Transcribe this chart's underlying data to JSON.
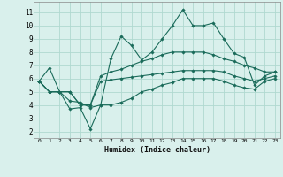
{
  "xlabel": "Humidex (Indice chaleur)",
  "background_color": "#d9f0ec",
  "grid_color": "#b0d9d0",
  "line_color": "#1a6b5a",
  "x_ticks": [
    0,
    1,
    2,
    3,
    4,
    5,
    6,
    7,
    8,
    9,
    10,
    11,
    12,
    13,
    14,
    15,
    16,
    17,
    18,
    19,
    20,
    21,
    22,
    23
  ],
  "y_ticks": [
    2,
    3,
    4,
    5,
    6,
    7,
    8,
    9,
    10,
    11
  ],
  "ylim": [
    1.5,
    11.8
  ],
  "xlim": [
    -0.5,
    23.5
  ],
  "lines": [
    {
      "x": [
        0,
        1,
        2,
        3,
        4,
        5,
        6,
        7,
        8,
        9,
        10,
        11,
        12,
        13,
        14,
        15,
        16,
        17,
        18,
        19,
        20,
        21,
        22,
        23
      ],
      "y": [
        5.8,
        6.8,
        5.0,
        3.7,
        3.8,
        2.2,
        4.0,
        7.5,
        9.2,
        8.5,
        7.4,
        8.0,
        9.0,
        10.0,
        11.2,
        10.0,
        10.0,
        10.2,
        9.0,
        7.9,
        7.6,
        5.5,
        6.2,
        6.5
      ]
    },
    {
      "x": [
        0,
        1,
        2,
        3,
        4,
        5,
        6,
        7,
        8,
        9,
        10,
        11,
        12,
        13,
        14,
        15,
        16,
        17,
        18,
        19,
        20,
        21,
        22,
        23
      ],
      "y": [
        5.8,
        5.0,
        5.0,
        5.0,
        4.0,
        4.0,
        6.2,
        6.5,
        6.7,
        7.0,
        7.3,
        7.5,
        7.8,
        8.0,
        8.0,
        8.0,
        8.0,
        7.8,
        7.5,
        7.3,
        7.0,
        6.8,
        6.5,
        6.5
      ]
    },
    {
      "x": [
        0,
        1,
        2,
        3,
        4,
        5,
        6,
        7,
        8,
        9,
        10,
        11,
        12,
        13,
        14,
        15,
        16,
        17,
        18,
        19,
        20,
        21,
        22,
        23
      ],
      "y": [
        5.8,
        5.0,
        5.0,
        5.0,
        4.0,
        4.0,
        5.8,
        5.9,
        6.0,
        6.1,
        6.2,
        6.3,
        6.4,
        6.5,
        6.6,
        6.6,
        6.6,
        6.6,
        6.5,
        6.2,
        6.0,
        5.8,
        6.0,
        6.2
      ]
    },
    {
      "x": [
        0,
        1,
        2,
        3,
        4,
        5,
        6,
        7,
        8,
        9,
        10,
        11,
        12,
        13,
        14,
        15,
        16,
        17,
        18,
        19,
        20,
        21,
        22,
        23
      ],
      "y": [
        5.8,
        5.0,
        5.0,
        4.3,
        4.2,
        3.8,
        4.0,
        4.0,
        4.2,
        4.5,
        5.0,
        5.2,
        5.5,
        5.7,
        6.0,
        6.0,
        6.0,
        6.0,
        5.8,
        5.5,
        5.3,
        5.2,
        5.8,
        6.0
      ]
    }
  ]
}
